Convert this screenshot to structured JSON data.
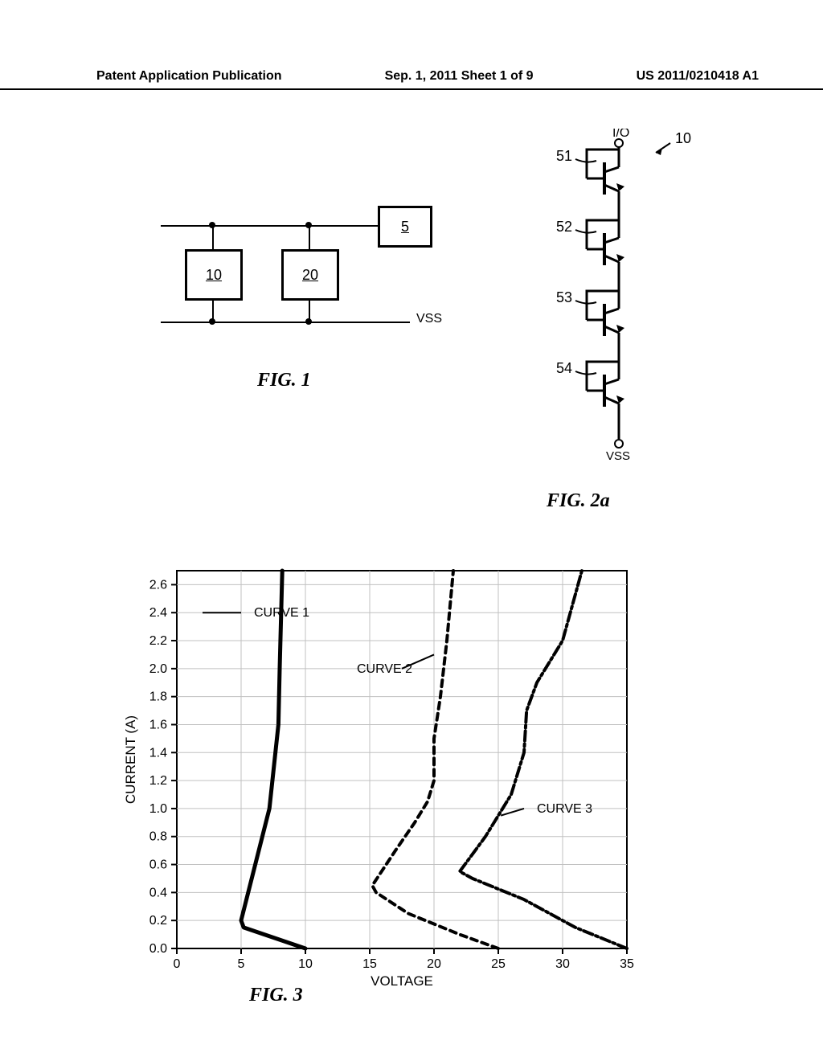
{
  "header": {
    "left": "Patent Application Publication",
    "center": "Sep. 1, 2011  Sheet 1 of 9",
    "right": "US 2011/0210418 A1"
  },
  "fig1": {
    "label": "FIG. 1",
    "boxes": {
      "b5": "5",
      "b10": "10",
      "b20": "20"
    },
    "vss_label": "VSS"
  },
  "fig2": {
    "label": "FIG. 2a",
    "top_label": "I/O",
    "bottom_label": "VSS",
    "ref_num": "10",
    "transistors": [
      "51",
      "52",
      "53",
      "54"
    ],
    "stroke": "#000000",
    "stroke_width": 3
  },
  "chart": {
    "label": "FIG. 3",
    "xlabel": "VOLTAGE",
    "ylabel": "CURRENT (A)",
    "xlim": [
      0,
      35
    ],
    "ylim": [
      0.0,
      2.7
    ],
    "xticks": [
      0,
      5,
      10,
      15,
      20,
      25,
      30,
      35
    ],
    "yticks": [
      0.0,
      0.2,
      0.4,
      0.6,
      0.8,
      1.0,
      1.2,
      1.4,
      1.6,
      1.8,
      2.0,
      2.2,
      2.4,
      2.6
    ],
    "plot_bg": "#ffffff",
    "axis_color": "#000000",
    "grid_color": "#c0c0c0",
    "frame_stroke_width": 2,
    "grid_stroke_width": 1,
    "curves": [
      {
        "name": "CURVE 1",
        "label_pos": [
          6,
          2.4
        ],
        "leader": [
          [
            5,
            2.4
          ],
          [
            2,
            2.4
          ]
        ],
        "dash": "none",
        "color": "#000000",
        "width": 5,
        "points": [
          [
            10,
            0.0
          ],
          [
            5.2,
            0.15
          ],
          [
            5.0,
            0.2
          ],
          [
            7.2,
            1.0
          ],
          [
            7.9,
            1.6
          ],
          [
            8.0,
            2.0
          ],
          [
            8.2,
            2.7
          ]
        ]
      },
      {
        "name": "CURVE 2",
        "label_pos": [
          14,
          2.0
        ],
        "leader": [
          [
            17.5,
            2.0
          ],
          [
            20,
            2.1
          ]
        ],
        "dash": "8 6",
        "color": "#000000",
        "width": 4,
        "points": [
          [
            25,
            0.0
          ],
          [
            22,
            0.1
          ],
          [
            18,
            0.25
          ],
          [
            15.5,
            0.4
          ],
          [
            15.2,
            0.45
          ],
          [
            17,
            0.7
          ],
          [
            18.5,
            0.9
          ],
          [
            19.5,
            1.05
          ],
          [
            20,
            1.2
          ],
          [
            20,
            1.5
          ],
          [
            20.5,
            1.8
          ],
          [
            21,
            2.2
          ],
          [
            21.5,
            2.7
          ]
        ]
      },
      {
        "name": "CURVE 3",
        "label_pos": [
          28,
          1.0
        ],
        "leader": [
          [
            27,
            1.0
          ],
          [
            25.2,
            0.95
          ]
        ],
        "dash": "12 4 3 4",
        "color": "#000000",
        "width": 4,
        "points": [
          [
            35,
            0.0
          ],
          [
            31,
            0.15
          ],
          [
            27,
            0.35
          ],
          [
            23,
            0.5
          ],
          [
            22,
            0.55
          ],
          [
            24,
            0.8
          ],
          [
            26,
            1.1
          ],
          [
            27,
            1.4
          ],
          [
            27.2,
            1.7
          ],
          [
            28,
            1.9
          ],
          [
            30,
            2.2
          ],
          [
            31.5,
            2.7
          ]
        ]
      }
    ]
  }
}
